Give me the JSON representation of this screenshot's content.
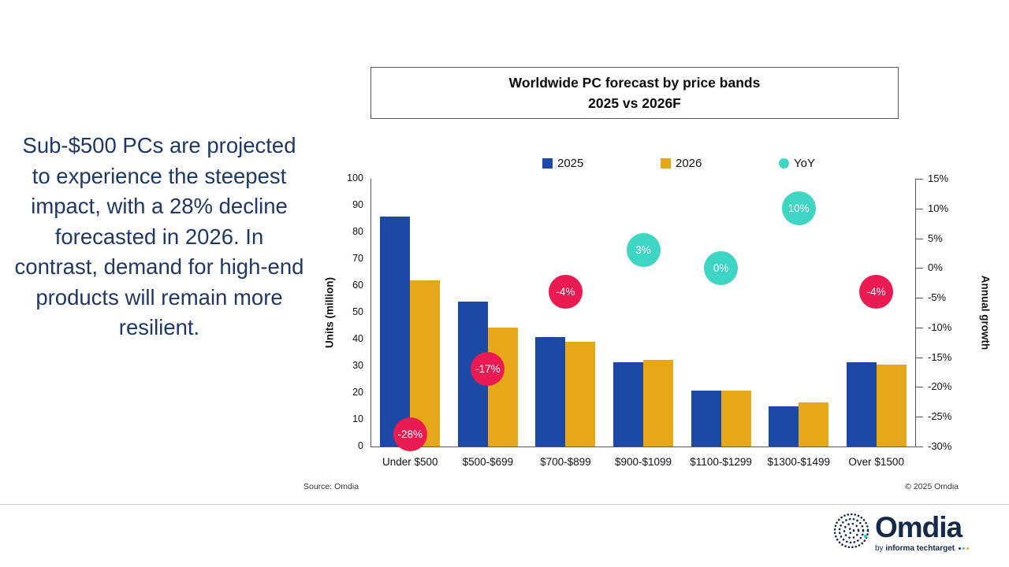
{
  "title": {
    "line1": "Worldwide PC forecast by price bands",
    "line2": "2025 vs 2026F"
  },
  "callout": "Sub-$500 PCs are projected to experience the steepest impact, with a 28% decline forecasted in 2026. In contrast, demand for high-end products will remain more resilient.",
  "footer": {
    "source": "Source: Omdia",
    "copyright": "© 2025 Omdia",
    "logo_name": "Omdia",
    "tagline_by": "by ",
    "tagline_brand": "informa techtarget"
  },
  "chart_data": {
    "type": "bar",
    "title": "Worldwide PC forecast by price bands 2025 vs 2026F",
    "categories": [
      "Under $500",
      "$500-$699",
      "$700-$899",
      "$900-$1099",
      "$1100-$1299",
      "$1300-$1499",
      "Over $1500"
    ],
    "series": [
      {
        "name": "2025",
        "color": "#1C49A5",
        "values": [
          86,
          54,
          41,
          31.5,
          21,
          15,
          31.5
        ]
      },
      {
        "name": "2026",
        "color": "#E6A817",
        "values": [
          62,
          44.5,
          39,
          32.5,
          21,
          16.5,
          30.5
        ]
      }
    ],
    "yoy": {
      "name": "YoY",
      "labels": [
        "-28%",
        "-17%",
        "-4%",
        "3%",
        "0%",
        "10%",
        "-4%"
      ],
      "values": [
        -28,
        -17,
        -4,
        3,
        0,
        10,
        -4
      ],
      "positive_color": "#3FD5C4",
      "negative_color": "#EA1A52"
    },
    "ylabel_left": "Units (million)",
    "ylabel_right": "Annual growth",
    "ylim_left": [
      0,
      100
    ],
    "ylim_right": [
      -30,
      15
    ],
    "left_ticks": [
      100,
      90,
      80,
      70,
      60,
      50,
      40,
      30,
      20,
      10,
      0
    ],
    "right_tick_labels": [
      "15%",
      "10%",
      "5%",
      "0%",
      "-5%",
      "-10%",
      "-15%",
      "-20%",
      "-25%",
      "-30%"
    ],
    "right_tick_values": [
      15,
      10,
      5,
      0,
      -5,
      -10,
      -15,
      -20,
      -25,
      -30
    ],
    "legend_position": "top",
    "grid": false
  }
}
